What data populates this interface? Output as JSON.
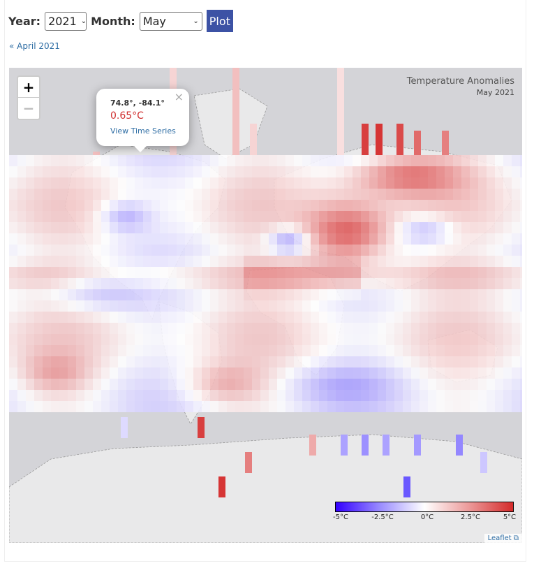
{
  "controls": {
    "year_label": "Year:",
    "year_value": "2021",
    "month_label": "Month:",
    "month_value": "May",
    "plot_label": "Plot"
  },
  "nav": {
    "previous_link": "« April 2021"
  },
  "map": {
    "title": "Temperature Anomalies",
    "subtitle": "May 2021",
    "zoom_in_label": "+",
    "zoom_out_label": "−",
    "popup": {
      "coords": "74.8°, -84.1°",
      "value": "0.65°C",
      "link": "View Time Series",
      "close": "×"
    },
    "legend": {
      "colors": [
        "#3300ff",
        "#9a8cff",
        "#ffffff",
        "#ec9a9a",
        "#d42a2a"
      ],
      "ticks": [
        "-5°C",
        "-2.5°C",
        "0°C",
        "2.5°C",
        "5°C"
      ]
    },
    "attribution": "Leaflet",
    "colors": {
      "land": "#e8e8e8",
      "ocean": "#d4d4d8",
      "no_data": "#d4d4d8"
    }
  }
}
